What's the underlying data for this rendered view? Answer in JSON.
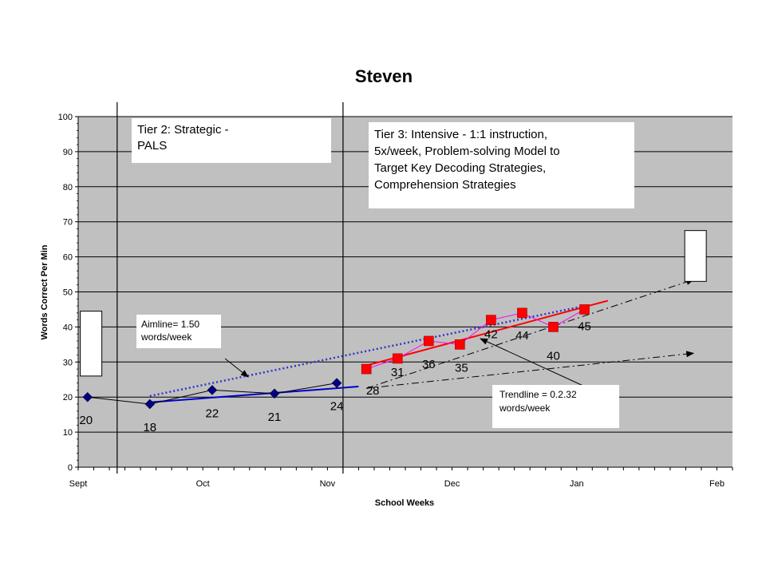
{
  "colors": {
    "plot_bg": "#c0c0c0",
    "tier2_series": "#000080",
    "tier3_series": "#ff0000",
    "tier3_connector": "#ff00ff",
    "aimline": "#3333cc",
    "tier2_trend": "#0000cc",
    "tier3_trend": "#ff0000",
    "goal_lines": "#000000"
  },
  "annotations": {
    "tier2": [
      "Tier 2: Strategic -",
      "PALS"
    ],
    "tier3": [
      "Tier 3: Intensive - 1:1 instruction,",
      "5x/week, Problem-solving Model to",
      "Target Key Decoding Strategies,",
      "Comprehension Strategies"
    ],
    "aimline": [
      "Aimline= 1.50",
      "words/week"
    ],
    "trendline": [
      "Trendline = 0.2.32",
      "words/week"
    ]
  },
  "chart_data": {
    "type": "line",
    "title": "Steven",
    "xlabel": "School Weeks",
    "ylabel": "Words Correct Per Min",
    "ylim": [
      0,
      100
    ],
    "y_ticks": [
      0,
      10,
      20,
      30,
      40,
      50,
      60,
      70,
      80,
      90,
      100
    ],
    "xlim": [
      0,
      42
    ],
    "month_labels": [
      {
        "label": "Sept",
        "week": 0
      },
      {
        "label": "Oct",
        "week": 8
      },
      {
        "label": "Nov",
        "week": 16
      },
      {
        "label": "Dec",
        "week": 24
      },
      {
        "label": "Jan",
        "week": 32
      },
      {
        "label": "Feb",
        "week": 41
      }
    ],
    "grid": "horizontal",
    "phase_lines_week": [
      2.5,
      17
    ],
    "series": [
      {
        "marker": "diamond",
        "x": [
          0.6,
          4.6,
          8.6,
          12.6,
          16.6
        ],
        "values": [
          20,
          18,
          22,
          21,
          24
        ],
        "labels": [
          "20",
          "18",
          "22",
          "21",
          "24"
        ]
      },
      {
        "marker": "square",
        "x": [
          18.5,
          20.5,
          22.5,
          24.5,
          26.5,
          28.5,
          30.5,
          32.5
        ],
        "values": [
          28,
          31,
          36,
          35,
          42,
          44,
          40,
          45
        ],
        "labels": [
          "28",
          "31",
          "36",
          "35",
          "42",
          "44",
          "40",
          "45"
        ]
      }
    ],
    "trend_lines": [
      {
        "kind": "tier2-trend",
        "x": [
          4.6,
          18.0
        ],
        "y": [
          18.5,
          23
        ]
      },
      {
        "kind": "tier3-trend",
        "x": [
          18.5,
          34.0
        ],
        "y": [
          29,
          47.5
        ]
      },
      {
        "kind": "aimline",
        "x": [
          4.6,
          32.5
        ],
        "y": [
          20.3,
          46
        ]
      }
    ],
    "goal_lines": [
      {
        "x": [
          18.5,
          39.5
        ],
        "y": [
          22.5,
          53.5
        ]
      },
      {
        "x": [
          18.5,
          39.5
        ],
        "y": [
          22.5,
          32.5
        ]
      }
    ],
    "benchmark_ranges": [
      {
        "x": 0.8,
        "low": 26,
        "high": 44.5
      },
      {
        "x": 39.6,
        "low": 53,
        "high": 67.5
      }
    ]
  }
}
